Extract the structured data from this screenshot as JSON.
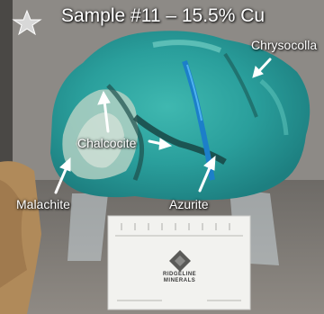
{
  "title": "Sample #11 – 15.5% Cu",
  "labels": {
    "chrysocolla": "Chrysocolla",
    "chalcocite": "Chalcocite",
    "malachite": "Malachite",
    "azurite": "Azurite"
  },
  "card": {
    "brand_line1": "RIDGELINE",
    "brand_line2": "MINERALS"
  },
  "icons": [
    "star-icon",
    "arrow-icon"
  ],
  "colors": {
    "chrysocolla_teal": "#2aa6a2",
    "azurite_blue": "#1c7fc9",
    "label_text": "#ffffff"
  }
}
